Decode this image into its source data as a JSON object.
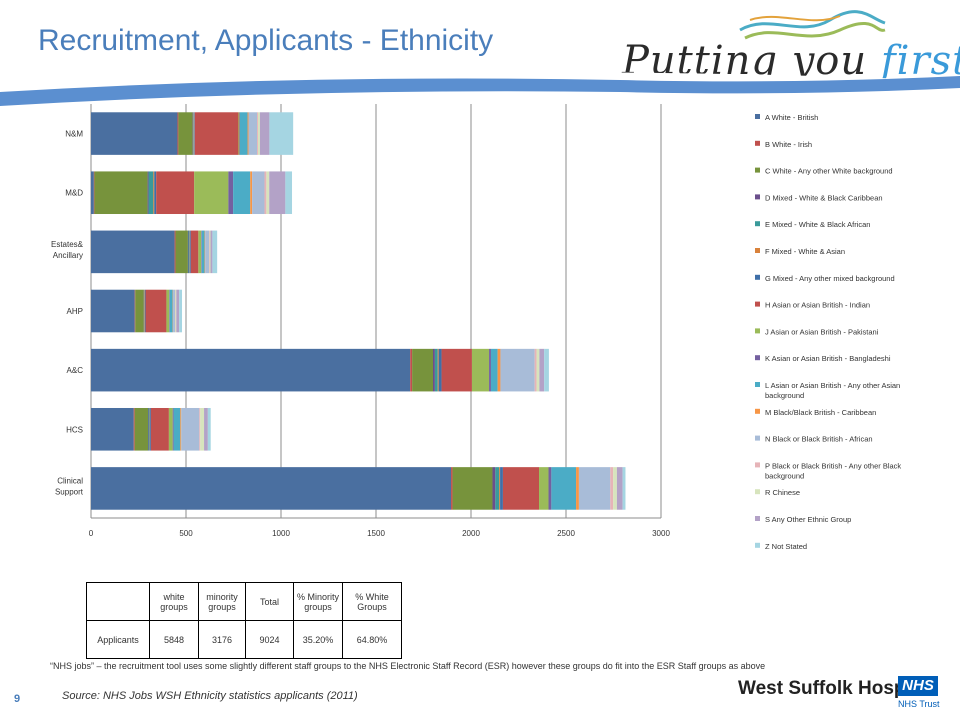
{
  "page": {
    "title": "Recruitment, Applicants - Ethnicity",
    "tagline_a": "Putting you ",
    "tagline_b": "first",
    "page_number": "9",
    "note": "“NHS jobs” – the recruitment tool uses some slightly different staff groups to the NHS Electronic Staff Record (ESR) however these groups do fit into the ESR Staff groups as above",
    "source": "Source: NHS Jobs WSH Ethnicity statistics applicants (2011)",
    "hospital_name": "West Suffolk Hospital",
    "nhs_badge": "NHS",
    "trust_label": "NHS Trust"
  },
  "colors": {
    "title": "#4a7ebb",
    "swoosh": "#5b8fd0",
    "grid": "#8c8c8c",
    "nhs_blue": "#005eb8"
  },
  "table": {
    "headers": [
      "",
      "white groups",
      "minority groups",
      "Total",
      "% Minority groups",
      "% White Groups"
    ],
    "rows": [
      [
        "Applicants",
        "5848",
        "3176",
        "9024",
        "35.20%",
        "64.80%"
      ]
    ]
  },
  "chart_data": {
    "type": "bar",
    "orientation": "horizontal",
    "stacked": true,
    "categories": [
      "N&M",
      "M&D",
      "Estates& Ancillary",
      "AHP",
      "A&C",
      "HCS",
      "Clinical Support"
    ],
    "xlim": [
      0,
      3000
    ],
    "xticks": [
      0,
      500,
      1000,
      1500,
      2000,
      2500,
      3000
    ],
    "grid": true,
    "legend_position": "right",
    "series": [
      {
        "name": "A White - British",
        "color": "#4a6fa0",
        "values": [
          455,
          15,
          440,
          230,
          1680,
          225,
          1895
        ]
      },
      {
        "name": "B White - Irish",
        "color": "#c0504d",
        "values": [
          5,
          3,
          5,
          3,
          10,
          5,
          8
        ]
      },
      {
        "name": "C White - Any other White background",
        "color": "#77933c",
        "values": [
          75,
          280,
          65,
          45,
          110,
          70,
          210
        ]
      },
      {
        "name": "D Mixed - White & Black Caribbean",
        "color": "#6b4f8c",
        "values": [
          3,
          5,
          3,
          2,
          10,
          3,
          15
        ]
      },
      {
        "name": "E Mixed - White & Black African",
        "color": "#3a9a9a",
        "values": [
          3,
          25,
          5,
          2,
          15,
          5,
          20
        ]
      },
      {
        "name": "F Mixed - White & Asian",
        "color": "#d9823b",
        "values": [
          2,
          5,
          2,
          2,
          5,
          2,
          5
        ]
      },
      {
        "name": "G Mixed - Any other mixed background",
        "color": "#3f6fa8",
        "values": [
          3,
          10,
          5,
          3,
          15,
          5,
          15
        ]
      },
      {
        "name": "H Asian or Asian British - Indian",
        "color": "#c0504d",
        "values": [
          230,
          200,
          40,
          110,
          160,
          95,
          190
        ]
      },
      {
        "name": "J Asian or Asian British - Pakistani",
        "color": "#9bbb59",
        "values": [
          5,
          180,
          15,
          15,
          90,
          20,
          50
        ]
      },
      {
        "name": "K Asian or Asian British - Bangladeshi",
        "color": "#7460a0",
        "values": [
          3,
          25,
          3,
          3,
          10,
          5,
          15
        ]
      },
      {
        "name": "L Asian or Asian British - Any other Asian background",
        "color": "#4bacc6",
        "values": [
          40,
          90,
          15,
          15,
          35,
          35,
          130
        ]
      },
      {
        "name": "M Black/Black British - Caribbean",
        "color": "#f79646",
        "values": [
          5,
          10,
          3,
          2,
          15,
          5,
          15
        ]
      },
      {
        "name": "N Black or Black British - African",
        "color": "#a8bcd8",
        "values": [
          45,
          65,
          20,
          10,
          180,
          95,
          165
        ]
      },
      {
        "name": "P Black or Black British - Any other Black background",
        "color": "#e6b4b8",
        "values": [
          5,
          10,
          3,
          2,
          10,
          5,
          15
        ]
      },
      {
        "name": "R Chinese",
        "color": "#d7e4bd",
        "values": [
          10,
          15,
          5,
          5,
          15,
          20,
          20
        ]
      },
      {
        "name": "S Any Other Ethnic Group",
        "color": "#b3a2c7",
        "values": [
          50,
          85,
          10,
          15,
          25,
          20,
          30
        ]
      },
      {
        "name": "Z Not Stated",
        "color": "#a5d5e2",
        "values": [
          125,
          35,
          25,
          15,
          25,
          15,
          15
        ]
      }
    ]
  }
}
